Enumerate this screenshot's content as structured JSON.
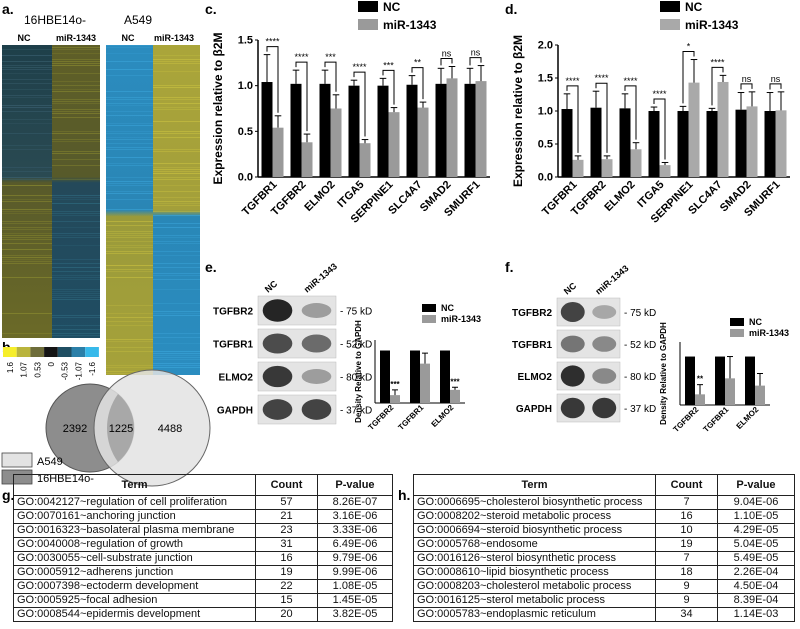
{
  "panel_labels": {
    "a": "a.",
    "b": "b.",
    "c": "c.",
    "d": "d.",
    "e": "e.",
    "f": "f.",
    "g": "g.",
    "h": "h."
  },
  "heatmap": {
    "left_title": "16HBE14o-",
    "right_title": "A549",
    "left_cols": [
      "NC",
      "miR-1343"
    ],
    "right_cols": [
      "NC",
      "miR-1343"
    ],
    "scale_ticks": [
      "1.6",
      "1.07",
      "0.53",
      "0",
      "-0.53",
      "-1.07",
      "-1.6"
    ],
    "scale_colors": [
      "#f6ee2a",
      "#b9b43c",
      "#6e6d3a",
      "#151515",
      "#1f4e62",
      "#2b7fa8",
      "#37b9ea"
    ]
  },
  "venn": {
    "left_only": "2392",
    "overlap": "1225",
    "right_only": "4488",
    "legend": [
      {
        "label": "A549",
        "color": "#e3e3e3"
      },
      {
        "label": "16HBE14o-",
        "color": "#8d8d8d"
      }
    ]
  },
  "chart_data": [
    {
      "panel": "c",
      "type": "bar",
      "ylabel": "Expression relative to β2M",
      "ylim": [
        0,
        1.5
      ],
      "yticks": [
        "0.0",
        "0.5",
        "1.0",
        "1.5"
      ],
      "categories": [
        "TGFBR1",
        "TGFBR2",
        "ELMO2",
        "ITGA5",
        "SERPINE1",
        "SLC4A7",
        "SMAD2",
        "SMURF1"
      ],
      "series": [
        {
          "name": "NC",
          "color": "#000000",
          "values": [
            1.04,
            1.02,
            1.02,
            1.0,
            1.0,
            1.01,
            1.02,
            1.02
          ],
          "errors": [
            0.3,
            0.15,
            0.15,
            0.06,
            0.08,
            0.1,
            0.17,
            0.17
          ]
        },
        {
          "name": "miR-1343",
          "color": "#9a9a9a",
          "values": [
            0.54,
            0.38,
            0.75,
            0.37,
            0.71,
            0.76,
            1.08,
            1.05
          ],
          "errors": [
            0.13,
            0.09,
            0.15,
            0.04,
            0.05,
            0.06,
            0.13,
            0.17
          ]
        }
      ],
      "significance": [
        "****",
        "****",
        "***",
        "****",
        "***",
        "**",
        "ns",
        "ns"
      ]
    },
    {
      "panel": "d",
      "type": "bar",
      "ylabel": "Expression relative to β2M",
      "ylim": [
        0,
        2.0
      ],
      "yticks": [
        "0.0",
        "0.5",
        "1.0",
        "1.5",
        "2.0"
      ],
      "categories": [
        "TGFBR1",
        "TGFBR2",
        "ELMO2",
        "ITGA5",
        "SERPINE1",
        "SLC4A7",
        "SMAD2",
        "SMURF1"
      ],
      "series": [
        {
          "name": "NC",
          "color": "#000000",
          "values": [
            1.03,
            1.05,
            1.04,
            1.0,
            1.0,
            1.0,
            1.02,
            1.0
          ],
          "errors": [
            0.23,
            0.25,
            0.22,
            0.06,
            0.07,
            0.04,
            0.26,
            0.28
          ]
        },
        {
          "name": "miR-1343",
          "color": "#a9a9a9",
          "values": [
            0.26,
            0.27,
            0.42,
            0.18,
            1.43,
            1.44,
            1.07,
            1.01
          ],
          "errors": [
            0.06,
            0.05,
            0.1,
            0.04,
            0.35,
            0.1,
            0.22,
            0.28
          ]
        }
      ],
      "significance": [
        "****",
        "****",
        "****",
        "****",
        "*",
        "****",
        "ns",
        "ns"
      ]
    },
    {
      "panel": "e",
      "type": "bar",
      "ylabel": "Density Relative to GAPDH",
      "ylim": [
        0,
        1.2
      ],
      "categories": [
        "TGFBR2",
        "TGFBR1",
        "ELMO2"
      ],
      "series": [
        {
          "name": "NC",
          "color": "#000000",
          "values": [
            1.0,
            1.0,
            1.0
          ]
        },
        {
          "name": "miR-1343",
          "color": "#9a9a9a",
          "values": [
            0.15,
            0.75,
            0.25
          ],
          "errors": [
            0.1,
            0.2,
            0.05
          ]
        }
      ],
      "significance": [
        "***",
        "",
        "***"
      ]
    },
    {
      "panel": "f",
      "type": "bar",
      "ylabel": "Density Relative to GAPDH",
      "ylim": [
        0,
        1.3
      ],
      "categories": [
        "TGFBR2",
        "TGFBR1",
        "ELMO2"
      ],
      "series": [
        {
          "name": "NC",
          "color": "#000000",
          "values": [
            1.0,
            1.0,
            1.0
          ]
        },
        {
          "name": "miR-1343",
          "color": "#9a9a9a",
          "values": [
            0.22,
            0.55,
            0.4
          ],
          "errors": [
            0.2,
            0.45,
            0.25
          ]
        }
      ],
      "significance": [
        "**",
        "",
        ""
      ]
    }
  ],
  "blots": {
    "e": {
      "lanes": [
        "NC",
        "miR-1343"
      ],
      "rows": [
        {
          "label": "TGFBR2",
          "kd": "75 kD"
        },
        {
          "label": "TGFBR1",
          "kd": "52 kD"
        },
        {
          "label": "ELMO2",
          "kd": "80 kD"
        },
        {
          "label": "GAPDH",
          "kd": "37 kD"
        }
      ]
    },
    "f": {
      "lanes": [
        "NC",
        "miR-1343"
      ],
      "rows": [
        {
          "label": "TGFBR2",
          "kd": "75 kD"
        },
        {
          "label": "TGFBR1",
          "kd": "52 kD"
        },
        {
          "label": "ELMO2",
          "kd": "80 kD"
        },
        {
          "label": "GAPDH",
          "kd": "37 kD"
        }
      ]
    }
  },
  "table_g": {
    "headers": [
      "Term",
      "Count",
      "P-value"
    ],
    "rows": [
      [
        "GO:0042127~regulation of cell proliferation",
        "57",
        "8.26E-07"
      ],
      [
        "GO:0070161~anchoring junction",
        "21",
        "3.16E-06"
      ],
      [
        "GO:0016323~basolateral plasma membrane",
        "23",
        "3.33E-06"
      ],
      [
        "GO:0040008~regulation of growth",
        "31",
        "6.49E-06"
      ],
      [
        "GO:0030055~cell-substrate junction",
        "16",
        "9.79E-06"
      ],
      [
        "GO:0005912~adherens junction",
        "19",
        "9.99E-06"
      ],
      [
        "GO:0007398~ectoderm development",
        "22",
        "1.08E-05"
      ],
      [
        "GO:0005925~focal adhesion",
        "15",
        "1.45E-05"
      ],
      [
        "GO:0008544~epidermis development",
        "20",
        "3.82E-05"
      ]
    ]
  },
  "table_h": {
    "headers": [
      "Term",
      "Count",
      "P-value"
    ],
    "rows": [
      [
        "GO:0006695~cholesterol biosynthetic process",
        "7",
        "9.04E-06"
      ],
      [
        "GO:0008202~steroid metabolic process",
        "16",
        "1.10E-05"
      ],
      [
        "GO:0006694~steroid biosynthetic process",
        "10",
        "4.29E-05"
      ],
      [
        "GO:0005768~endosome",
        "19",
        "5.04E-05"
      ],
      [
        "GO:0016126~sterol biosynthetic process",
        "7",
        "5.49E-05"
      ],
      [
        "GO:0008610~lipid biosynthetic process",
        "18",
        "2.26E-04"
      ],
      [
        "GO:0008203~cholesterol metabolic process",
        "9",
        "4.50E-04"
      ],
      [
        "GO:0016125~sterol metabolic process",
        "9",
        "8.39E-04"
      ],
      [
        "GO:0005783~endoplasmic reticulum",
        "34",
        "1.14E-03"
      ]
    ]
  }
}
